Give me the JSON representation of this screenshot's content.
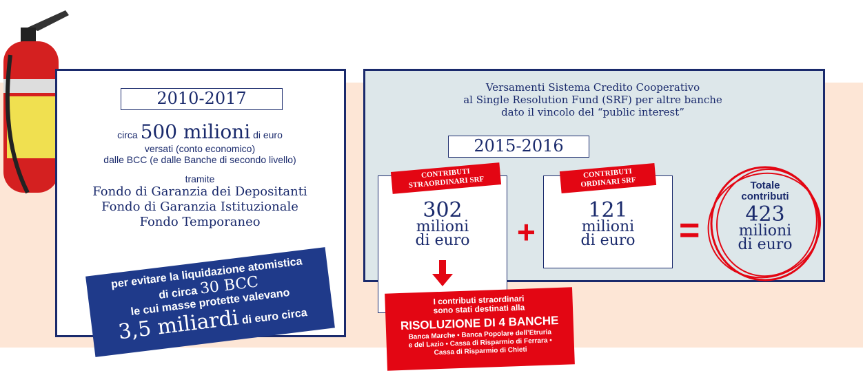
{
  "left": {
    "period": "2010-2017",
    "prefix": "circa",
    "amount": "500 milioni",
    "unit": "di euro",
    "line1": "versati (conto economico)",
    "line2": "dalle BCC (e dalle Banche di secondo livello)",
    "via": "tramite",
    "funds": [
      "Fondo di Garanzia dei Depositanti",
      "Fondo di Garanzia Istituzionale",
      "Fondo Temporaneo"
    ],
    "note": {
      "line1": "per evitare la liquidazione atomistica",
      "line2_prefix": "di circa",
      "line2_amount": "30 BCC",
      "line3": "le cui masse protette valevano",
      "line4_amount": "3,5 miliardi",
      "line4_suffix": "di euro circa"
    }
  },
  "right": {
    "title": [
      "Versamenti Sistema Credito Cooperativo",
      "al Single Resolution Fund (SRF) per altre banche",
      "dato il vincolo del “public interest”"
    ],
    "period": "2015-2016",
    "extraordinary": {
      "label": [
        "CONTRIBUTI",
        "STRAORDINARI SRF"
      ],
      "value": 302,
      "unit": [
        "milioni",
        "di euro"
      ]
    },
    "plus": "+",
    "ordinary": {
      "label": [
        "CONTRIBUTI",
        "ORDINARI SRF"
      ],
      "value": 121,
      "unit": [
        "milioni",
        "di euro"
      ]
    },
    "equals": "=",
    "total": {
      "label": [
        "Totale",
        "contributi"
      ],
      "value": 423,
      "unit": [
        "milioni",
        "di euro"
      ]
    },
    "destination": {
      "intro": [
        "I contributi straordinari",
        "sono stati destinati alla"
      ],
      "headline": "RISOLUZIONE DI 4 BANCHE",
      "banks": [
        "Banca Marche • Banca Popolare dell’Etruria",
        "e del Lazio • Cassa di Risparmio di Ferrara •",
        "Cassa di Risparmio di Chieti"
      ]
    }
  }
}
